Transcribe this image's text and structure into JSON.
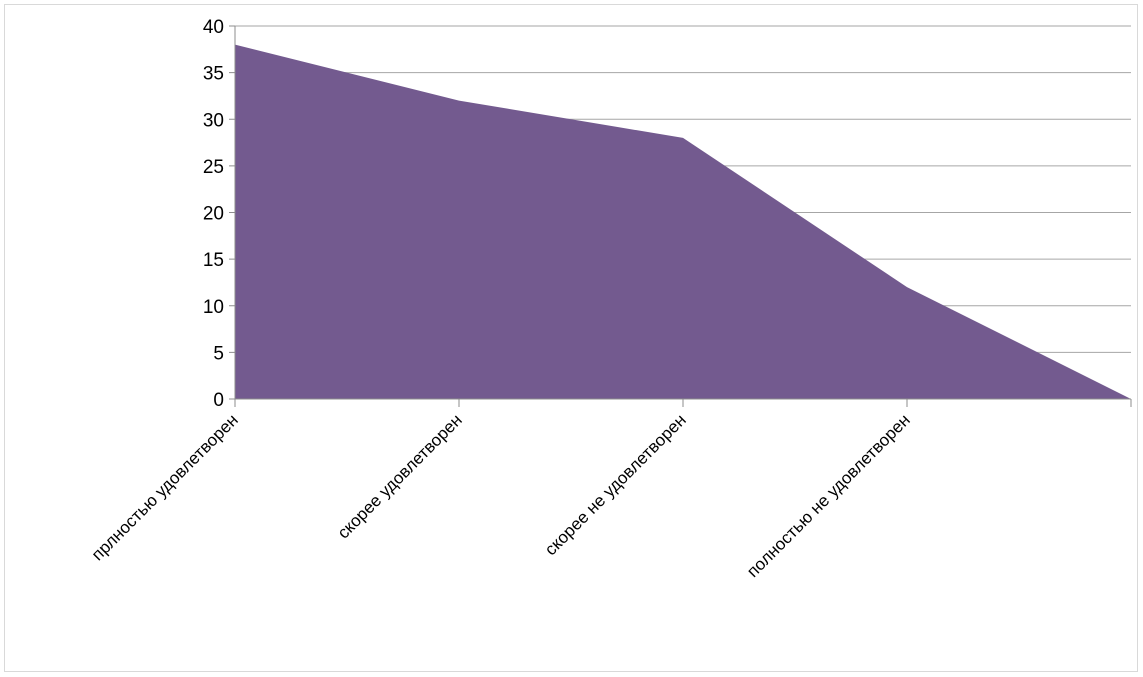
{
  "chart_data": {
    "type": "area",
    "title": "",
    "xlabel": "",
    "ylabel": "",
    "categories": [
      "прлностью удовлетворен",
      "скорее удовлетворен",
      "скорее не удовлетворен",
      "полностью не удовлетворен",
      ""
    ],
    "series": [
      {
        "values": [
          38,
          32,
          28,
          12,
          0
        ]
      }
    ],
    "ylim": [
      0,
      40
    ],
    "yticks": [
      0,
      5,
      10,
      15,
      20,
      25,
      30,
      35,
      40
    ],
    "grid": true,
    "legend": "none",
    "colors": {
      "area": "#735a8f",
      "gridline": "#a6a6a6",
      "axis": "#8c8c8c",
      "frame": "#d9d9d9"
    }
  }
}
